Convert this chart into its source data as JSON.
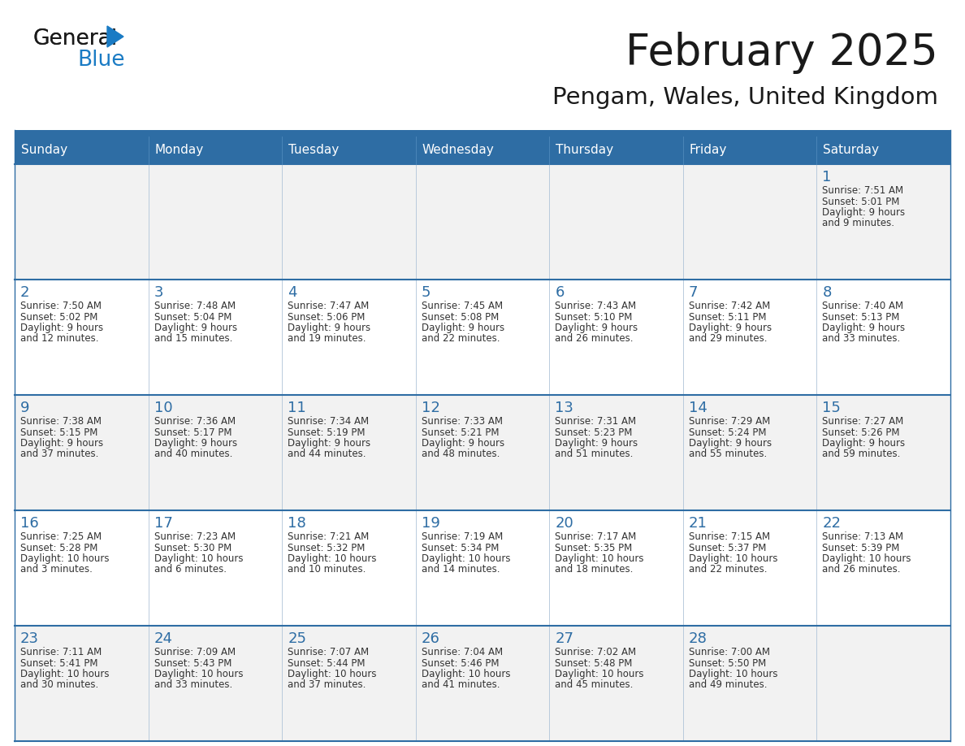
{
  "title": "February 2025",
  "subtitle": "Pengam, Wales, United Kingdom",
  "header_bg": "#2e6da4",
  "header_text_color": "#ffffff",
  "cell_bg_light": "#f2f2f2",
  "cell_bg_white": "#ffffff",
  "cell_border_color": "#2e6da4",
  "cell_divider_color": "#b0c4d8",
  "day_names": [
    "Sunday",
    "Monday",
    "Tuesday",
    "Wednesday",
    "Thursday",
    "Friday",
    "Saturday"
  ],
  "logo_general_color": "#1a1a1a",
  "logo_blue_color": "#1a7bc4",
  "logo_triangle_color": "#1a7bc4",
  "title_color": "#1a1a1a",
  "subtitle_color": "#1a1a1a",
  "day_num_color": "#2e6da4",
  "info_text_color": "#333333",
  "calendar": [
    [
      {
        "day": null,
        "info": ""
      },
      {
        "day": null,
        "info": ""
      },
      {
        "day": null,
        "info": ""
      },
      {
        "day": null,
        "info": ""
      },
      {
        "day": null,
        "info": ""
      },
      {
        "day": null,
        "info": ""
      },
      {
        "day": 1,
        "info": "Sunrise: 7:51 AM\nSunset: 5:01 PM\nDaylight: 9 hours\nand 9 minutes."
      }
    ],
    [
      {
        "day": 2,
        "info": "Sunrise: 7:50 AM\nSunset: 5:02 PM\nDaylight: 9 hours\nand 12 minutes."
      },
      {
        "day": 3,
        "info": "Sunrise: 7:48 AM\nSunset: 5:04 PM\nDaylight: 9 hours\nand 15 minutes."
      },
      {
        "day": 4,
        "info": "Sunrise: 7:47 AM\nSunset: 5:06 PM\nDaylight: 9 hours\nand 19 minutes."
      },
      {
        "day": 5,
        "info": "Sunrise: 7:45 AM\nSunset: 5:08 PM\nDaylight: 9 hours\nand 22 minutes."
      },
      {
        "day": 6,
        "info": "Sunrise: 7:43 AM\nSunset: 5:10 PM\nDaylight: 9 hours\nand 26 minutes."
      },
      {
        "day": 7,
        "info": "Sunrise: 7:42 AM\nSunset: 5:11 PM\nDaylight: 9 hours\nand 29 minutes."
      },
      {
        "day": 8,
        "info": "Sunrise: 7:40 AM\nSunset: 5:13 PM\nDaylight: 9 hours\nand 33 minutes."
      }
    ],
    [
      {
        "day": 9,
        "info": "Sunrise: 7:38 AM\nSunset: 5:15 PM\nDaylight: 9 hours\nand 37 minutes."
      },
      {
        "day": 10,
        "info": "Sunrise: 7:36 AM\nSunset: 5:17 PM\nDaylight: 9 hours\nand 40 minutes."
      },
      {
        "day": 11,
        "info": "Sunrise: 7:34 AM\nSunset: 5:19 PM\nDaylight: 9 hours\nand 44 minutes."
      },
      {
        "day": 12,
        "info": "Sunrise: 7:33 AM\nSunset: 5:21 PM\nDaylight: 9 hours\nand 48 minutes."
      },
      {
        "day": 13,
        "info": "Sunrise: 7:31 AM\nSunset: 5:23 PM\nDaylight: 9 hours\nand 51 minutes."
      },
      {
        "day": 14,
        "info": "Sunrise: 7:29 AM\nSunset: 5:24 PM\nDaylight: 9 hours\nand 55 minutes."
      },
      {
        "day": 15,
        "info": "Sunrise: 7:27 AM\nSunset: 5:26 PM\nDaylight: 9 hours\nand 59 minutes."
      }
    ],
    [
      {
        "day": 16,
        "info": "Sunrise: 7:25 AM\nSunset: 5:28 PM\nDaylight: 10 hours\nand 3 minutes."
      },
      {
        "day": 17,
        "info": "Sunrise: 7:23 AM\nSunset: 5:30 PM\nDaylight: 10 hours\nand 6 minutes."
      },
      {
        "day": 18,
        "info": "Sunrise: 7:21 AM\nSunset: 5:32 PM\nDaylight: 10 hours\nand 10 minutes."
      },
      {
        "day": 19,
        "info": "Sunrise: 7:19 AM\nSunset: 5:34 PM\nDaylight: 10 hours\nand 14 minutes."
      },
      {
        "day": 20,
        "info": "Sunrise: 7:17 AM\nSunset: 5:35 PM\nDaylight: 10 hours\nand 18 minutes."
      },
      {
        "day": 21,
        "info": "Sunrise: 7:15 AM\nSunset: 5:37 PM\nDaylight: 10 hours\nand 22 minutes."
      },
      {
        "day": 22,
        "info": "Sunrise: 7:13 AM\nSunset: 5:39 PM\nDaylight: 10 hours\nand 26 minutes."
      }
    ],
    [
      {
        "day": 23,
        "info": "Sunrise: 7:11 AM\nSunset: 5:41 PM\nDaylight: 10 hours\nand 30 minutes."
      },
      {
        "day": 24,
        "info": "Sunrise: 7:09 AM\nSunset: 5:43 PM\nDaylight: 10 hours\nand 33 minutes."
      },
      {
        "day": 25,
        "info": "Sunrise: 7:07 AM\nSunset: 5:44 PM\nDaylight: 10 hours\nand 37 minutes."
      },
      {
        "day": 26,
        "info": "Sunrise: 7:04 AM\nSunset: 5:46 PM\nDaylight: 10 hours\nand 41 minutes."
      },
      {
        "day": 27,
        "info": "Sunrise: 7:02 AM\nSunset: 5:48 PM\nDaylight: 10 hours\nand 45 minutes."
      },
      {
        "day": 28,
        "info": "Sunrise: 7:00 AM\nSunset: 5:50 PM\nDaylight: 10 hours\nand 49 minutes."
      },
      {
        "day": null,
        "info": ""
      }
    ]
  ]
}
